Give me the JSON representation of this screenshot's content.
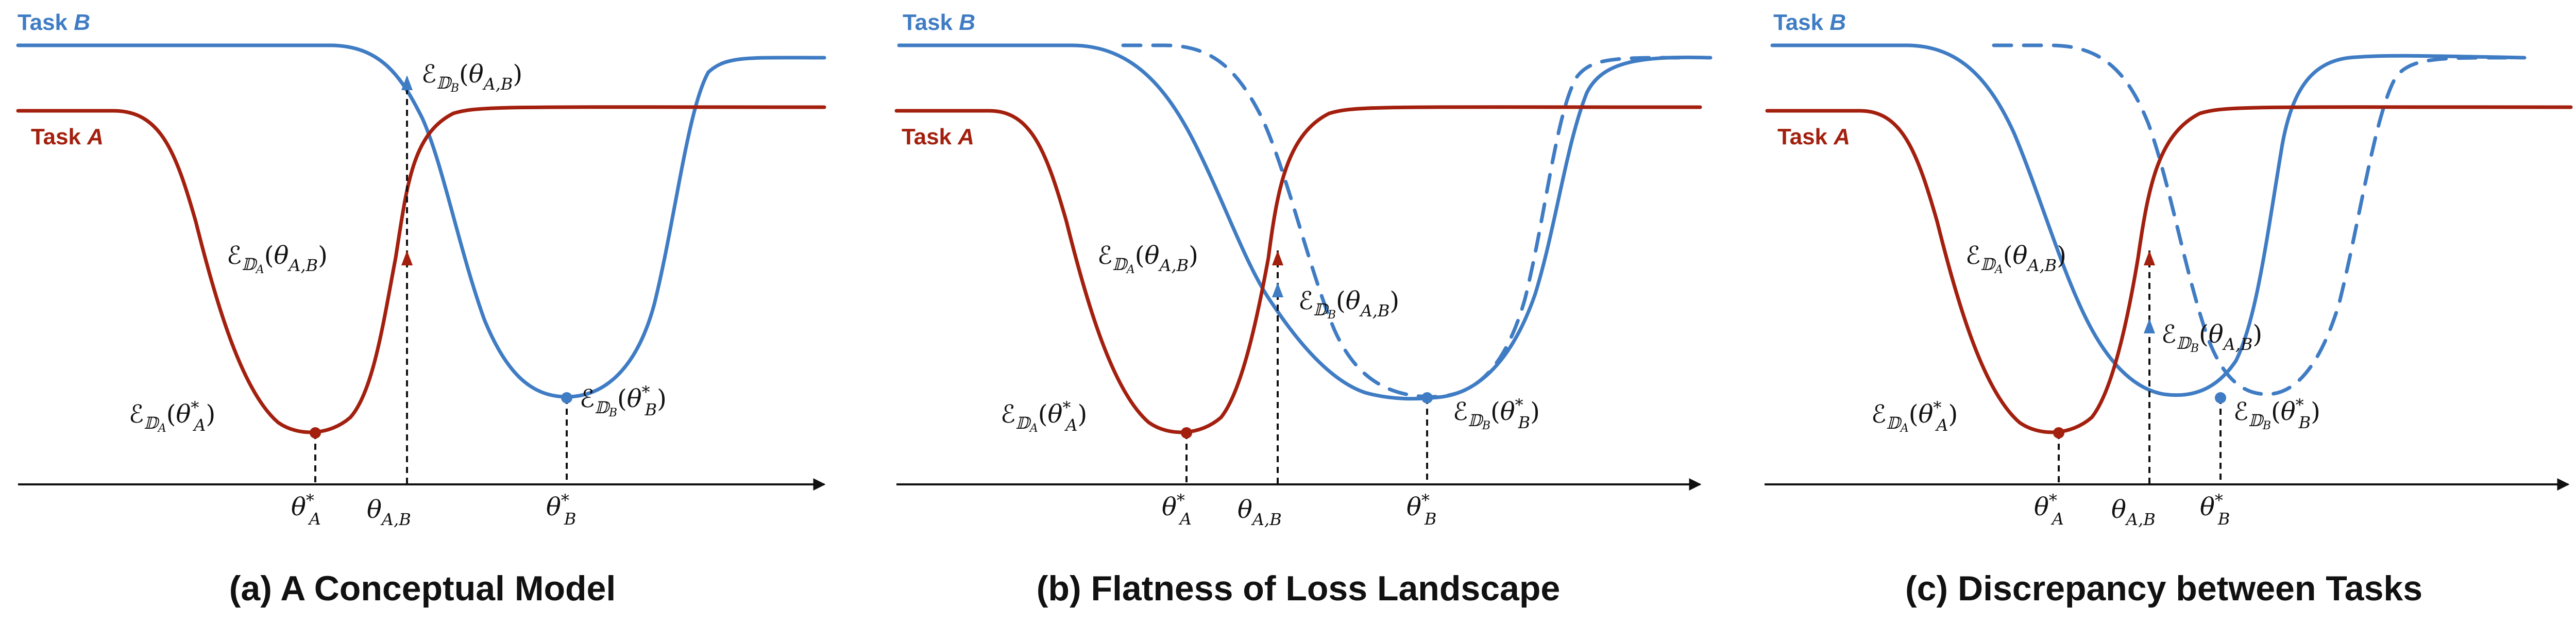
{
  "colors": {
    "task_a": "#a31f0e",
    "task_b": "#3f7cc4",
    "axis": "#111111"
  },
  "task_labels": {
    "task_b_prefix": "Task ",
    "task_b_letter": "B",
    "task_a_prefix": "Task ",
    "task_a_letter": "A"
  },
  "symbols": {
    "E": "ℰ",
    "D": "𝔻",
    "theta": "θ",
    "star": "*",
    "A": "A",
    "B": "B",
    "AB": "A,B",
    "lparen": "(",
    "rparen": ")"
  },
  "panels": [
    {
      "caption": "(a) A Conceptual Model"
    },
    {
      "caption": "(b) Flatness of Loss Landscape"
    },
    {
      "caption": "(c) Discrepancy between Tasks"
    }
  ]
}
